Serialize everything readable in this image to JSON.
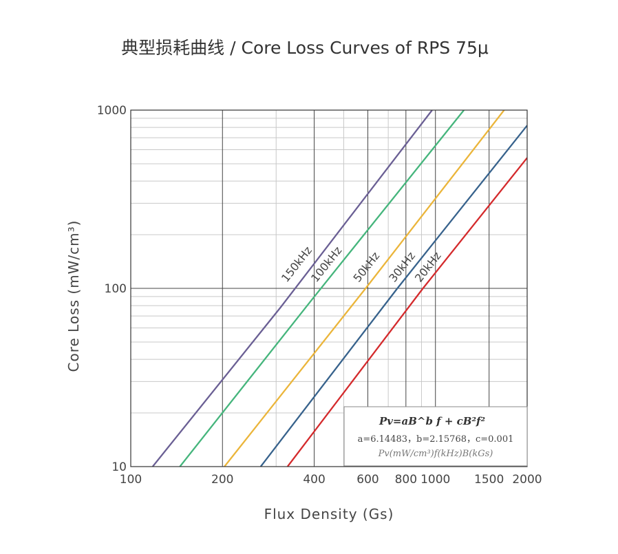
{
  "chart_data": {
    "type": "line",
    "title": "典型损耗曲线 / Core Loss Curves of RPS 75μ",
    "xlabel": "Flux Density (Gs)",
    "ylabel": "Core Loss (mW/cm³)",
    "xscale": "log",
    "yscale": "log",
    "xlim": [
      100,
      2000
    ],
    "ylim": [
      10,
      1000
    ],
    "x_ticks": [
      100,
      200,
      400,
      600,
      800,
      1000,
      1500,
      2000
    ],
    "y_ticks": [
      10,
      100,
      1000
    ],
    "grid": true,
    "series": [
      {
        "name": "150kHz",
        "color": "#6a5f94",
        "x": [
          118,
          310,
          975
        ],
        "y": [
          10,
          78,
          1000
        ]
      },
      {
        "name": "100kHz",
        "color": "#45b57c",
        "x": [
          145,
          390,
          1240
        ],
        "y": [
          10,
          85,
          1000
        ]
      },
      {
        "name": "50kHz",
        "color": "#ebb53a",
        "x": [
          203,
          590,
          1680
        ],
        "y": [
          10,
          100,
          1000
        ]
      },
      {
        "name": "30kHz",
        "color": "#37628c",
        "x": [
          267,
          750,
          2000
        ],
        "y": [
          10,
          100,
          820
        ]
      },
      {
        "name": "20kHz",
        "color": "#d42a2c",
        "x": [
          327,
          910,
          2000
        ],
        "y": [
          10,
          100,
          540
        ]
      }
    ],
    "formula": {
      "main": "Pv=aB^b f + cB²f²",
      "coefficients": "a=6.14483，b=2.15768，c=0.001",
      "units": "Pv(mW/cm³)f(kHz)B(kGs)"
    }
  }
}
